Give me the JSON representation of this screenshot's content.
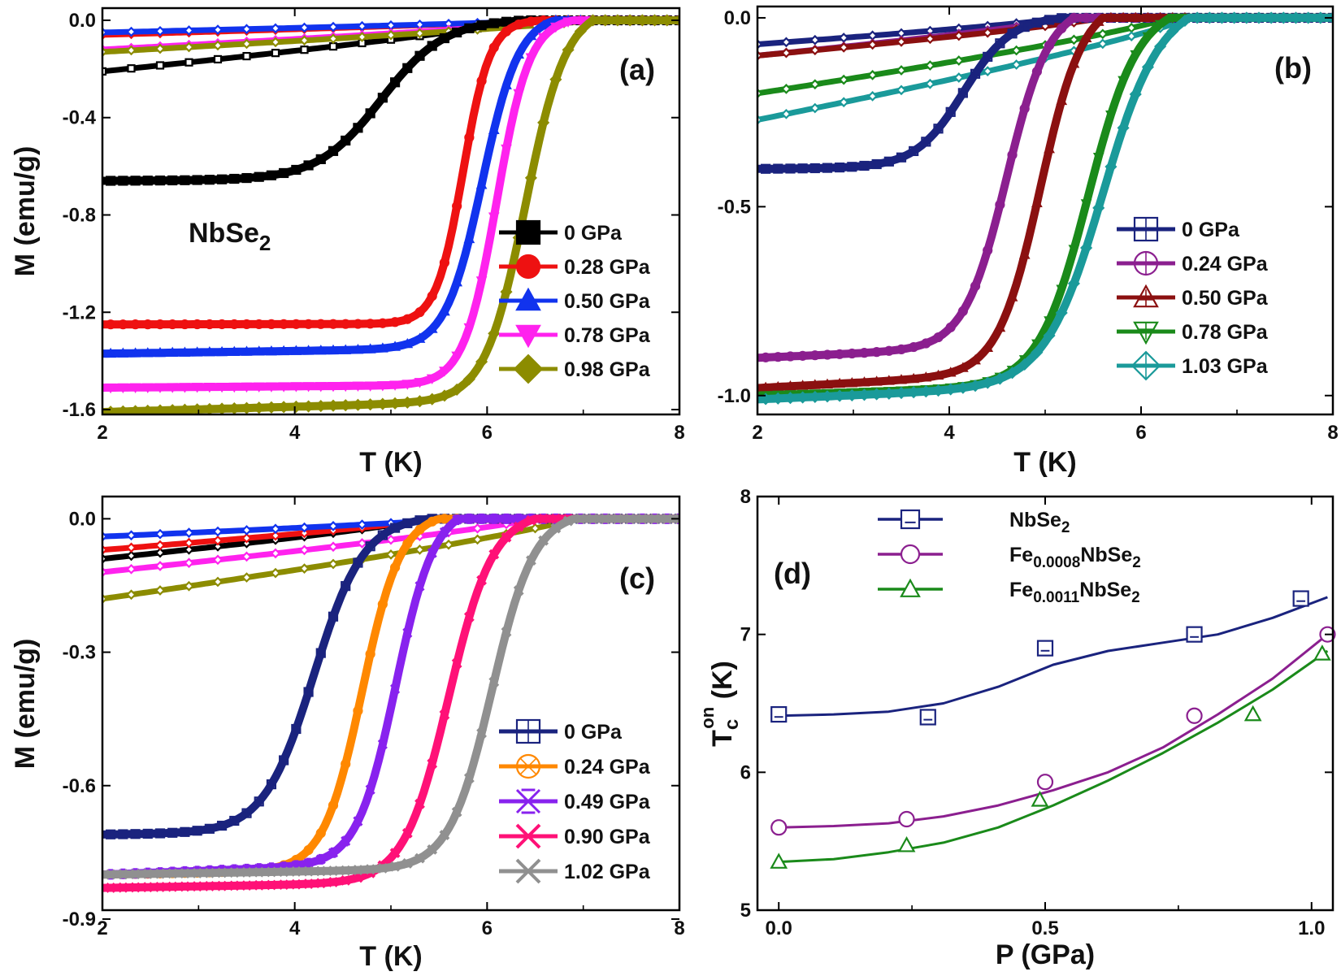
{
  "figure": "NbSe2 magnetization vs temperature under pressure",
  "chart_data": [
    {
      "type": "line",
      "id": "a",
      "panel_label": "(a)",
      "annotation": {
        "base": "NbSe",
        "sub": "2"
      },
      "xlabel": "T (K)",
      "ylabel": "M (emu/g)",
      "xlim": [
        2,
        8
      ],
      "ylim": [
        -1.62,
        0.05
      ],
      "xticks": [
        2,
        4,
        6,
        8
      ],
      "yticks": [
        0.0,
        -0.4,
        -0.8,
        -1.2,
        -1.6
      ],
      "tick_decimals": 1,
      "series": [
        {
          "name": "0 GPa",
          "color": "#000000",
          "marker": "square",
          "mfc": "#000000",
          "zfc": -0.66,
          "tc": 6.4,
          "mid": 4.9,
          "w": 0.33,
          "fc": -0.21,
          "fc_marker": "square-open"
        },
        {
          "name": "0.28 GPa",
          "color": "#ee1111",
          "marker": "circle",
          "mfc": "#ee1111",
          "zfc": -1.25,
          "tc": 6.6,
          "mid": 5.75,
          "w": 0.14,
          "fc": -0.06
        },
        {
          "name": "0.50 GPa",
          "color": "#1133ee",
          "marker": "triangle-up",
          "mfc": "#1133ee",
          "zfc": -1.37,
          "tc": 6.7,
          "mid": 5.95,
          "w": 0.19,
          "fc": -0.05
        },
        {
          "name": "0.78 GPa",
          "color": "#ff22ee",
          "marker": "triangle-down",
          "mfc": "#ff22ee",
          "zfc": -1.51,
          "tc": 6.9,
          "mid": 6.1,
          "w": 0.17,
          "fc": -0.12
        },
        {
          "name": "0.98 GPa",
          "color": "#8c8c00",
          "marker": "diamond",
          "mfc": "#8c8c00",
          "zfc": -1.61,
          "tc": 7.1,
          "mid": 6.4,
          "w": 0.21,
          "fc": -0.13
        }
      ]
    },
    {
      "type": "line",
      "id": "b",
      "panel_label": "(b)",
      "xlabel": "T (K)",
      "ylabel": "",
      "xlim": [
        2,
        8
      ],
      "ylim": [
        -1.05,
        0.03
      ],
      "xticks": [
        2,
        4,
        6,
        8
      ],
      "yticks": [
        0.0,
        -0.5,
        -1.0
      ],
      "tick_decimals": 1,
      "series": [
        {
          "name": "0 GPa",
          "color": "#1a237e",
          "marker": "square-cross",
          "mfc": "none",
          "zfc": -0.4,
          "tc": 5.2,
          "mid": 4.15,
          "w": 0.25,
          "fc": -0.07
        },
        {
          "name": "0.24 GPa",
          "color": "#8b1f8f",
          "marker": "circle-cross",
          "mfc": "none",
          "zfc": -0.9,
          "tc": 5.3,
          "mid": 4.6,
          "w": 0.22,
          "fc": -0.1
        },
        {
          "name": "0.50 GPa",
          "color": "#8b1010",
          "marker": "triangle-cross",
          "mfc": "none",
          "zfc": -0.98,
          "tc": 5.6,
          "mid": 4.95,
          "w": 0.22,
          "fc": -0.1
        },
        {
          "name": "0.78 GPa",
          "color": "#1a8a1a",
          "marker": "triangle-down-cross",
          "mfc": "none",
          "zfc": -1.0,
          "tc": 6.3,
          "mid": 5.45,
          "w": 0.26,
          "fc": -0.2
        },
        {
          "name": "1.03 GPa",
          "color": "#1a9a9a",
          "marker": "diamond-cross",
          "mfc": "none",
          "zfc": -1.01,
          "tc": 6.5,
          "mid": 5.6,
          "w": 0.3,
          "fc": -0.27
        }
      ]
    },
    {
      "type": "line",
      "id": "c",
      "panel_label": "(c)",
      "xlabel": "T (K)",
      "ylabel": "M (emu/g)",
      "xlim": [
        2,
        8
      ],
      "ylim": [
        -0.88,
        0.05
      ],
      "xticks": [
        2,
        4,
        6,
        8
      ],
      "yticks": [
        0.0,
        -0.3,
        -0.6,
        -0.9
      ],
      "tick_decimals": 1,
      "series": [
        {
          "name": "0 GPa",
          "color": "#1a237e",
          "marker": "square-cross",
          "mfc": "none",
          "zfc": -0.71,
          "tc": 5.4,
          "mid": 4.2,
          "w": 0.26,
          "fc": -0.09,
          "fc_color": "#000000"
        },
        {
          "name": "0.24 GPa",
          "color": "#ff8800",
          "marker": "circle-x",
          "mfc": "none",
          "zfc": -0.8,
          "tc": 5.5,
          "mid": 4.7,
          "w": 0.2,
          "fc": -0.07,
          "fc_color": "#ee1111"
        },
        {
          "name": "0.49 GPa",
          "color": "#8822ee",
          "marker": "star-x",
          "mfc": "none",
          "zfc": -0.8,
          "tc": 5.7,
          "mid": 5.05,
          "w": 0.2,
          "fc": -0.04,
          "fc_color": "#1133ee"
        },
        {
          "name": "0.90 GPa",
          "color": "#ff1177",
          "marker": "x-thick",
          "mfc": "none",
          "zfc": -0.83,
          "tc": 6.5,
          "mid": 5.6,
          "w": 0.23,
          "fc": -0.12,
          "fc_color": "#ff22ee"
        },
        {
          "name": "1.02 GPa",
          "color": "#909090",
          "marker": "x-thick",
          "mfc": "none",
          "zfc": -0.8,
          "tc": 6.9,
          "mid": 6.05,
          "w": 0.22,
          "fc": -0.18,
          "fc_color": "#8c8c00"
        }
      ]
    },
    {
      "type": "line",
      "id": "d",
      "panel_label": "(d)",
      "xlabel": "P (GPa)",
      "ylabel": {
        "base": "T",
        "sub": "c",
        "sup": "on",
        "unit": " (K)"
      },
      "xlim": [
        -0.04,
        1.04
      ],
      "ylim": [
        5,
        8
      ],
      "xticks": [
        0.0,
        0.5,
        1.0
      ],
      "yticks": [
        5,
        6,
        7,
        8
      ],
      "tick_decimals": 1,
      "ytick_decimals": 0,
      "series": [
        {
          "name": "NbSe2",
          "label_parts": [
            [
              "NbSe",
              ""
            ],
            [
              "2",
              "sub"
            ]
          ],
          "color": "#1a237e",
          "marker": "square-line",
          "x": [
            0.0,
            0.28,
            0.5,
            0.78,
            0.98
          ],
          "y": [
            6.42,
            6.4,
            6.9,
            7.0,
            7.26
          ],
          "fit": [
            6.41,
            6.42,
            6.44,
            6.5,
            6.62,
            6.78,
            6.88,
            6.94,
            7.0,
            7.12,
            7.27
          ]
        },
        {
          "name": "Fe0.0008NbSe2",
          "label_parts": [
            [
              "Fe",
              ""
            ],
            [
              "0.0008",
              "sub"
            ],
            [
              "NbSe",
              ""
            ],
            [
              "2",
              "sub"
            ]
          ],
          "color": "#8b1f8f",
          "marker": "circle",
          "x": [
            0.0,
            0.24,
            0.5,
            0.78,
            1.03
          ],
          "y": [
            5.6,
            5.66,
            5.93,
            6.41,
            7.0
          ],
          "fit": [
            5.6,
            5.61,
            5.63,
            5.68,
            5.76,
            5.87,
            6.0,
            6.18,
            6.42,
            6.68,
            7.0
          ]
        },
        {
          "name": "Fe0.0011NbSe2",
          "label_parts": [
            [
              "Fe",
              ""
            ],
            [
              "0.0011",
              "sub"
            ],
            [
              "NbSe",
              ""
            ],
            [
              "2",
              "sub"
            ]
          ],
          "color": "#1a8a1a",
          "marker": "triangle-up",
          "x": [
            0.0,
            0.24,
            0.49,
            0.89,
            1.02
          ],
          "y": [
            5.35,
            5.47,
            5.8,
            6.42,
            6.86
          ],
          "fit": [
            5.35,
            5.37,
            5.42,
            5.49,
            5.6,
            5.76,
            5.94,
            6.14,
            6.36,
            6.6,
            6.88
          ]
        }
      ]
    }
  ]
}
